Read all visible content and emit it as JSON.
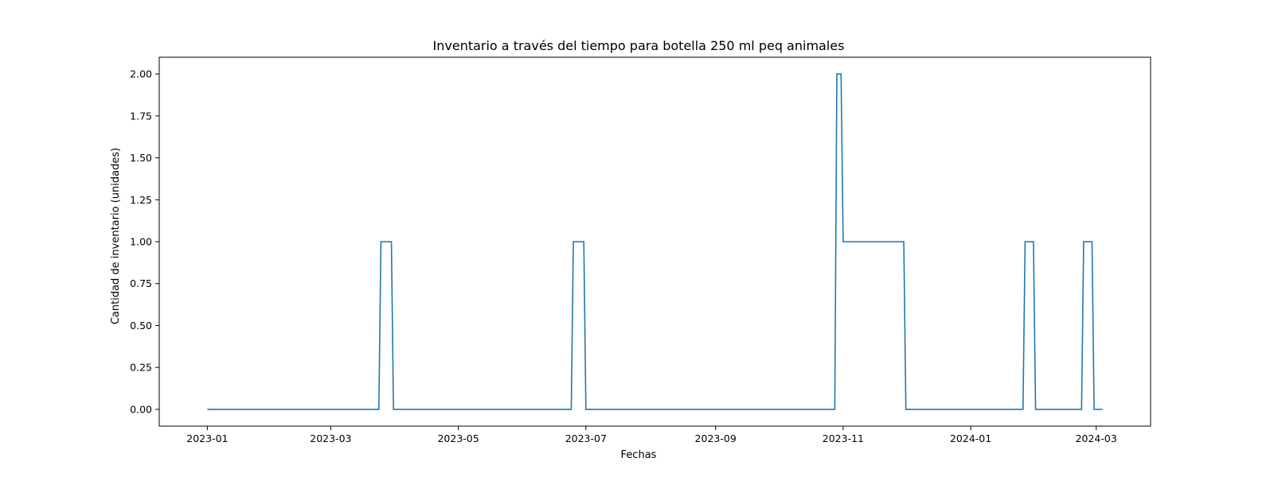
{
  "chart_data": {
    "type": "line",
    "title": "Inventario a través del tiempo para botella 250 ml peq animales",
    "xlabel": "Fechas",
    "ylabel": "Cantidad de inventario (unidades)",
    "x_ticks": [
      "2023-01",
      "2023-03",
      "2023-05",
      "2023-07",
      "2023-09",
      "2023-11",
      "2024-01",
      "2024-03"
    ],
    "y_ticks": [
      "0.00",
      "0.25",
      "0.50",
      "0.75",
      "1.00",
      "1.25",
      "1.50",
      "1.75",
      "2.00"
    ],
    "xlim": [
      "2022-12-09",
      "2024-03-27"
    ],
    "ylim": [
      -0.1,
      2.1
    ],
    "grid": false,
    "colors": {
      "series": "#1f77b4",
      "axes": "#000000",
      "background": "#ffffff"
    },
    "series": [
      {
        "x": [
          "2023-01-01",
          "2023-03-24",
          "2023-03-25",
          "2023-03-30",
          "2023-03-31",
          "2023-06-24",
          "2023-06-25",
          "2023-06-30",
          "2023-07-01",
          "2023-10-28",
          "2023-10-29",
          "2023-10-31",
          "2023-11-01",
          "2023-11-30",
          "2023-12-01",
          "2024-01-26",
          "2024-01-27",
          "2024-01-31",
          "2024-02-01",
          "2024-02-23",
          "2024-02-24",
          "2024-02-28",
          "2024-02-29",
          "2024-03-04"
        ],
        "values": [
          0,
          0,
          1,
          1,
          0,
          0,
          1,
          1,
          0,
          0,
          2,
          2,
          1,
          1,
          0,
          0,
          1,
          1,
          0,
          0,
          1,
          1,
          0,
          0
        ]
      }
    ]
  }
}
